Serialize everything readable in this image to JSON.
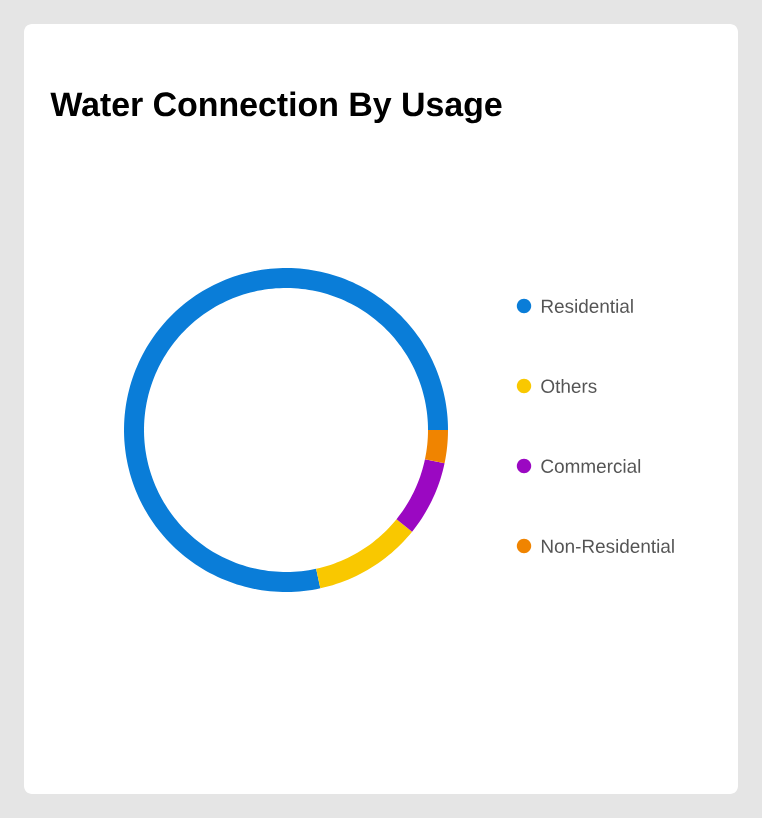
{
  "chart_data": {
    "type": "donut",
    "title": "Water Connection By Usage",
    "categories": [
      "Residential",
      "Others",
      "Commercial",
      "Non-Residential"
    ],
    "values": [
      78.4,
      10.8,
      7.5,
      3.3
    ],
    "colors": [
      "#0a7dd8",
      "#f9c800",
      "#9b08c2",
      "#f08400"
    ],
    "legend": "right"
  }
}
